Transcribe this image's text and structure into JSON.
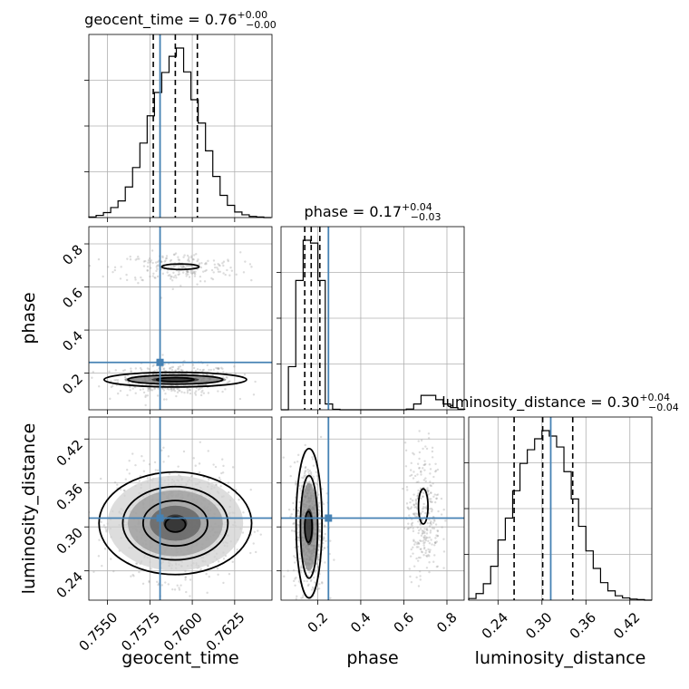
{
  "chart_data": {
    "type": "corner",
    "parameters": [
      {
        "name": "geocent_time",
        "label": "geocent_time",
        "title_value": "0.76",
        "title_upper": "+0.00",
        "title_lower": "−0.00",
        "range": [
          0.7539,
          0.7647
        ],
        "ticks": [
          0.755,
          0.7575,
          0.76,
          0.7625
        ],
        "tick_labels": [
          "0.7550",
          "0.7575",
          "0.7600",
          "0.7625"
        ],
        "quantiles": [
          0.7577,
          0.759,
          0.7603
        ],
        "truth": 0.7581,
        "hist_edges": [
          0.7539,
          0.75433,
          0.75476,
          0.75519,
          0.75562,
          0.75605,
          0.75648,
          0.75691,
          0.75734,
          0.75777,
          0.7582,
          0.75863,
          0.75906,
          0.75949,
          0.75992,
          0.76035,
          0.76078,
          0.76121,
          0.76164,
          0.76207,
          0.7625,
          0.76293,
          0.76336,
          0.76379,
          0.76422,
          0.76465
        ],
        "hist_counts": [
          1,
          4,
          9,
          18,
          30,
          55,
          90,
          134,
          183,
          225,
          261,
          290,
          305,
          262,
          212,
          170,
          120,
          74,
          40,
          22,
          10,
          5,
          2,
          1,
          0
        ]
      },
      {
        "name": "phase",
        "label": "phase",
        "title_value": "0.17",
        "title_upper": "+0.04",
        "title_lower": "−0.03",
        "range": [
          0.03,
          0.88
        ],
        "ticks": [
          0.2,
          0.4,
          0.6,
          0.8
        ],
        "tick_labels": [
          "0.2",
          "0.4",
          "0.6",
          "0.8"
        ],
        "quantiles": [
          0.14,
          0.17,
          0.21
        ],
        "truth": 0.25,
        "hist_edges": [
          0.03,
          0.0642,
          0.0984,
          0.1326,
          0.1668,
          0.201,
          0.2352,
          0.2694,
          0.3036,
          0.3378,
          0.372,
          0.4062,
          0.4404,
          0.4746,
          0.5088,
          0.543,
          0.5772,
          0.6114,
          0.6456,
          0.6798,
          0.714,
          0.7482,
          0.7824,
          0.8166,
          0.8508,
          0.885
        ],
        "hist_counts": [
          0,
          300,
          900,
          1180,
          1160,
          900,
          40,
          3,
          0,
          0,
          0,
          0,
          0,
          0,
          0,
          0,
          0,
          5,
          40,
          100,
          100,
          70,
          40,
          15,
          4
        ]
      },
      {
        "name": "luminosity_distance",
        "label": "luminosity_distance",
        "title_value": "0.30",
        "title_upper": "+0.04",
        "title_lower": "−0.04",
        "range": [
          0.2,
          0.45
        ],
        "ticks": [
          0.24,
          0.3,
          0.36,
          0.42
        ],
        "tick_labels": [
          "0.24",
          "0.30",
          "0.36",
          "0.42"
        ],
        "quantiles": [
          0.262,
          0.301,
          0.342
        ],
        "truth": 0.312,
        "hist_edges": [
          0.2,
          0.21,
          0.22,
          0.23,
          0.24,
          0.25,
          0.26,
          0.27,
          0.28,
          0.29,
          0.3,
          0.31,
          0.32,
          0.33,
          0.34,
          0.35,
          0.36,
          0.37,
          0.38,
          0.39,
          0.4,
          0.41,
          0.42,
          0.43,
          0.44,
          0.45
        ],
        "hist_counts": [
          3,
          12,
          30,
          62,
          110,
          150,
          200,
          250,
          275,
          295,
          310,
          300,
          280,
          235,
          185,
          135,
          90,
          58,
          32,
          17,
          8,
          4,
          2,
          1,
          0
        ]
      }
    ],
    "pairs": [
      {
        "x": "geocent_time",
        "y": "phase",
        "truth": [
          0.7581,
          0.25
        ],
        "clusters": [
          {
            "center": [
              0.759,
              0.17
            ],
            "sd": [
              0.0017,
              0.035
            ],
            "n": 500
          },
          {
            "center": [
              0.7592,
              0.69
            ],
            "sd": [
              0.0018,
              0.035
            ],
            "n": 220
          }
        ],
        "density_blobs": [
          {
            "center": [
              0.759,
              0.17
            ],
            "r": [
              0.0014,
              0.012
            ],
            "level": 0.95
          },
          {
            "center": [
              0.759,
              0.17
            ],
            "r": [
              0.003,
              0.022
            ],
            "level": 0.6
          }
        ],
        "contours": [
          {
            "center": [
              0.759,
              0.17
            ],
            "r": [
              0.0011,
              0.009
            ]
          },
          {
            "center": [
              0.759,
              0.17
            ],
            "r": [
              0.0028,
              0.021
            ]
          },
          {
            "center": [
              0.759,
              0.17
            ],
            "r": [
              0.0042,
              0.034
            ]
          },
          {
            "center": [
              0.7593,
              0.694
            ],
            "r": [
              0.0011,
              0.013
            ]
          }
        ]
      },
      {
        "x": "geocent_time",
        "y": "luminosity_distance",
        "truth": [
          0.7581,
          0.312
        ],
        "clusters": [
          {
            "center": [
              0.759,
              0.305
            ],
            "sd": [
              0.0017,
              0.038
            ],
            "n": 900
          }
        ],
        "density_blobs": [
          {
            "center": [
              0.759,
              0.305
            ],
            "r": [
              0.0007,
              0.012
            ],
            "level": 0.95
          },
          {
            "center": [
              0.759,
              0.305
            ],
            "r": [
              0.0015,
              0.024
            ],
            "level": 0.7
          },
          {
            "center": [
              0.759,
              0.305
            ],
            "r": [
              0.0028,
              0.045
            ],
            "level": 0.45
          },
          {
            "center": [
              0.759,
              0.305
            ],
            "r": [
              0.004,
              0.065
            ],
            "level": 0.2
          }
        ],
        "contours": [
          {
            "center": [
              0.759,
              0.303
            ],
            "r": [
              0.0006,
              0.01
            ]
          },
          {
            "center": [
              0.759,
              0.305
            ],
            "r": [
              0.0019,
              0.031
            ]
          },
          {
            "center": [
              0.759,
              0.305
            ],
            "r": [
              0.0031,
              0.05
            ]
          },
          {
            "center": [
              0.759,
              0.305
            ],
            "r": [
              0.0045,
              0.07
            ]
          }
        ]
      },
      {
        "x": "phase",
        "y": "luminosity_distance",
        "truth": [
          0.25,
          0.312
        ],
        "clusters": [
          {
            "center": [
              0.16,
              0.3
            ],
            "sd": [
              0.035,
              0.045
            ],
            "n": 650
          },
          {
            "center": [
              0.69,
              0.32
            ],
            "sd": [
              0.04,
              0.045
            ],
            "n": 300
          }
        ],
        "density_blobs": [
          {
            "center": [
              0.16,
              0.3
            ],
            "r": [
              0.02,
              0.025
            ],
            "level": 0.95
          },
          {
            "center": [
              0.16,
              0.3
            ],
            "r": [
              0.04,
              0.06
            ],
            "level": 0.55
          }
        ],
        "contours": [
          {
            "center": [
              0.157,
              0.3
            ],
            "r": [
              0.017,
              0.021
            ]
          },
          {
            "center": [
              0.16,
              0.3
            ],
            "r": [
              0.04,
              0.07
            ]
          },
          {
            "center": [
              0.16,
              0.305
            ],
            "r": [
              0.06,
              0.102
            ]
          },
          {
            "center": [
              0.69,
              0.328
            ],
            "r": [
              0.022,
              0.024
            ]
          }
        ]
      }
    ],
    "grid": true
  }
}
